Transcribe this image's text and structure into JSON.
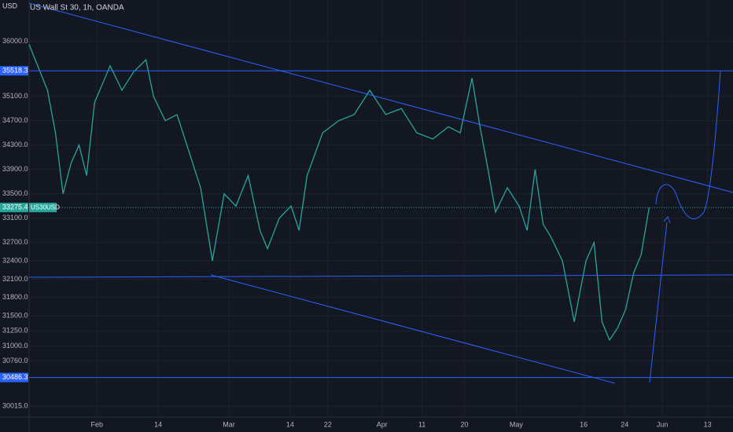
{
  "chart_data": {
    "type": "line",
    "title": "US Wall St 30, 1h, OANDA",
    "y_unit": "USD",
    "symbol": "US30USD",
    "xlim": [
      17.6,
      167
    ],
    "ylim": [
      29850,
      36680
    ],
    "xticks": [
      {
        "value": 32,
        "label": "Feb"
      },
      {
        "value": 45,
        "label": "14"
      },
      {
        "value": 60,
        "label": "Mar"
      },
      {
        "value": 73,
        "label": "14"
      },
      {
        "value": 81,
        "label": "22"
      },
      {
        "value": 92.5,
        "label": "Apr"
      },
      {
        "value": 101,
        "label": "11"
      },
      {
        "value": 110,
        "label": "20"
      },
      {
        "value": 121,
        "label": "May"
      },
      {
        "value": 135.3,
        "label": "16"
      },
      {
        "value": 144,
        "label": "24"
      },
      {
        "value": 152,
        "label": "Jun"
      },
      {
        "value": 161.6,
        "label": "13"
      }
    ],
    "yticks": [
      {
        "value": 36000,
        "label": "36000.0"
      },
      {
        "value": 35100,
        "label": "35100.0"
      },
      {
        "value": 34700,
        "label": "34700.0"
      },
      {
        "value": 34300,
        "label": "34300.0"
      },
      {
        "value": 33900,
        "label": "33900.0"
      },
      {
        "value": 33500,
        "label": "33500.0"
      },
      {
        "value": 33100,
        "label": "33100.0"
      },
      {
        "value": 32700,
        "label": "32700.0"
      },
      {
        "value": 32400,
        "label": "32400.0"
      },
      {
        "value": 32100,
        "label": "32100.0"
      },
      {
        "value": 31800,
        "label": "31800.0"
      },
      {
        "value": 31500,
        "label": "31500.0"
      },
      {
        "value": 31250,
        "label": "31250.0"
      },
      {
        "value": 31000,
        "label": "31000.0"
      },
      {
        "value": 30760,
        "label": "30760.0"
      },
      {
        "value": 30015,
        "label": "30015.0"
      }
    ],
    "grid": true,
    "series": [
      {
        "name": "US30USD",
        "color": "#26a69a",
        "x": [
          17.6,
          21.5,
          23.2,
          24.8,
          26.5,
          28.2,
          29.8,
          31.5,
          34.8,
          37.3,
          39.8,
          42.4,
          44.0,
          46.5,
          49.0,
          51.5,
          54.0,
          56.5,
          59.0,
          61.5,
          64.1,
          66.6,
          68.2,
          70.7,
          73.2,
          74.9,
          76.6,
          79.9,
          83.3,
          86.6,
          89.9,
          93.3,
          96.6,
          99.9,
          103.3,
          106.6,
          109.1,
          111.6,
          113.3,
          115.0,
          116.6,
          119.1,
          121.6,
          123.3,
          125.0,
          126.7,
          128.3,
          130.8,
          133.3,
          135.8,
          137.5,
          139.2,
          140.8,
          142.5,
          144.2,
          145.9,
          147.5,
          149.2
        ],
        "values": [
          35950,
          35200,
          34500,
          33500,
          34000,
          34300,
          33800,
          35000,
          35600,
          35200,
          35500,
          35700,
          35100,
          34700,
          34800,
          34200,
          33600,
          32400,
          33500,
          33300,
          33800,
          32900,
          32600,
          33100,
          33300,
          32900,
          33800,
          34500,
          34700,
          34800,
          35200,
          34800,
          34900,
          34500,
          34400,
          34600,
          34500,
          35400,
          34600,
          33900,
          33200,
          33600,
          33300,
          32900,
          33900,
          33000,
          32800,
          32400,
          31400,
          32400,
          32700,
          31400,
          31100,
          31300,
          31600,
          32200,
          32500,
          33275.4
        ]
      }
    ],
    "levels": [
      35518.3,
      30486.3
    ],
    "last_price": 33275.4
  }
}
